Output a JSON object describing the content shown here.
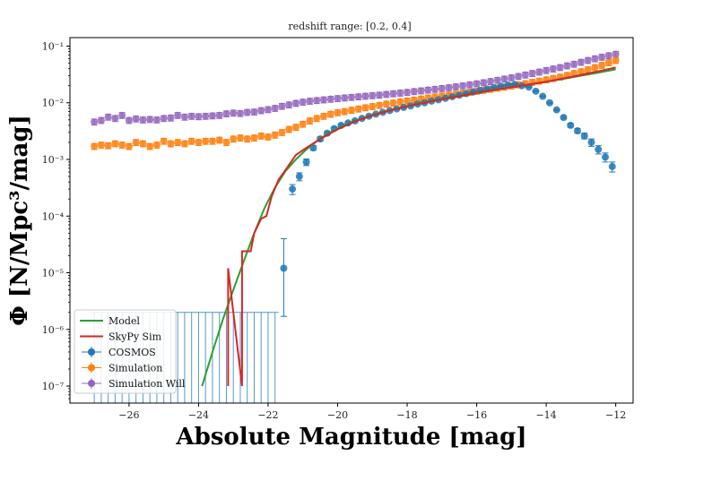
{
  "chart_data": {
    "type": "scatter",
    "title": "redshift range: [0.2, 0.4]",
    "xlabel": "Absolute Magnitude [mag]",
    "ylabel": "Φ [N/Mpc³/mag]",
    "xlim": [
      -27.7,
      -11.5
    ],
    "ylim_log10": [
      -7.3,
      -0.85
    ],
    "y_scale": "log",
    "x_ticks": [
      -26,
      -24,
      -22,
      -20,
      -18,
      -16,
      -14,
      -12
    ],
    "x_tick_labels": [
      "−26",
      "−24",
      "−22",
      "−20",
      "−18",
      "−16",
      "−14",
      "−12"
    ],
    "y_ticks_log10": [
      -7,
      -6,
      -5,
      -4,
      -3,
      -2,
      -1
    ],
    "y_tick_labels": [
      "10⁻⁷",
      "10⁻⁶",
      "10⁻⁵",
      "10⁻⁴",
      "10⁻³",
      "10⁻²",
      "10⁻¹"
    ],
    "legend_position": "lower-left",
    "colors": {
      "model": "#2ca02c",
      "skypy": "#d62728",
      "cosmos": "#1f77b4",
      "simulation": "#ff7f0e",
      "simulation_will": "#9467bd"
    },
    "series": [
      {
        "name": "Model",
        "kind": "line",
        "x": [
          -23.9,
          -23.6,
          -23.3,
          -23.0,
          -22.7,
          -22.4,
          -22.1,
          -21.8,
          -21.5,
          -21.2,
          -20.9,
          -20.6,
          -20.3,
          -20.0,
          -19.5,
          -19.0,
          -18.5,
          -18.0,
          -17.5,
          -17.0,
          -16.5,
          -16.0,
          -15.5,
          -15.0,
          -14.5,
          -14.0,
          -13.5,
          -13.0,
          -12.5,
          -12.0
        ],
        "y": [
          1e-07,
          4e-07,
          1.5e-06,
          5e-06,
          1.6e-05,
          5e-05,
          0.00014,
          0.00032,
          0.00062,
          0.001,
          0.0015,
          0.0021,
          0.0028,
          0.0035,
          0.0048,
          0.0061,
          0.0074,
          0.0088,
          0.0102,
          0.0116,
          0.0132,
          0.015,
          0.0168,
          0.0188,
          0.021,
          0.0235,
          0.0265,
          0.03,
          0.034,
          0.039
        ]
      },
      {
        "name": "SkyPy Sim",
        "kind": "line",
        "x": [
          -23.15,
          -23.15,
          -22.75,
          -22.75,
          -22.65,
          -22.5,
          -22.4,
          -22.2,
          -22.05,
          -21.9,
          -21.7,
          -21.5,
          -21.2,
          -20.9,
          -20.6,
          -20.3,
          -20.0,
          -19.5,
          -19.0,
          -18.5,
          -18.0,
          -17.5,
          -17.0,
          -16.5,
          -16.0,
          -15.5,
          -15.0,
          -14.5,
          -14.0,
          -13.5,
          -13.0,
          -12.5,
          -12.0
        ],
        "y": [
          1e-07,
          1.2e-05,
          1e-07,
          2.4e-05,
          2.4e-05,
          2.4e-05,
          5e-05,
          9e-05,
          0.0001,
          0.00022,
          0.00044,
          0.00065,
          0.0012,
          0.0016,
          0.0021,
          0.0027,
          0.0034,
          0.0047,
          0.006,
          0.0073,
          0.0087,
          0.01,
          0.0115,
          0.013,
          0.015,
          0.0168,
          0.0188,
          0.021,
          0.0235,
          0.027,
          0.031,
          0.036,
          0.042
        ]
      },
      {
        "name": "COSMOS",
        "kind": "errorbar",
        "x": [
          -21.55,
          -21.3,
          -21.1,
          -20.9,
          -20.7,
          -20.5,
          -20.3,
          -20.1,
          -19.9,
          -19.7,
          -19.5,
          -19.3,
          -19.1,
          -18.9,
          -18.7,
          -18.5,
          -18.3,
          -18.1,
          -17.9,
          -17.7,
          -17.5,
          -17.3,
          -17.1,
          -16.9,
          -16.7,
          -16.5,
          -16.3,
          -16.1,
          -15.9,
          -15.7,
          -15.5,
          -15.3,
          -15.1,
          -14.9,
          -14.7,
          -14.5,
          -14.3,
          -14.1,
          -13.9,
          -13.7,
          -13.5,
          -13.3,
          -13.1,
          -12.9,
          -12.7,
          -12.5,
          -12.3,
          -12.1
        ],
        "y": [
          1.2e-05,
          0.0003,
          0.0005,
          0.0009,
          0.0016,
          0.0023,
          0.0029,
          0.0035,
          0.004,
          0.0044,
          0.0048,
          0.0053,
          0.0058,
          0.0063,
          0.0068,
          0.0073,
          0.0078,
          0.0083,
          0.0088,
          0.0095,
          0.01,
          0.0107,
          0.0113,
          0.012,
          0.0128,
          0.0136,
          0.0145,
          0.0155,
          0.0165,
          0.0175,
          0.0185,
          0.0195,
          0.0205,
          0.021,
          0.02,
          0.019,
          0.016,
          0.013,
          0.01,
          0.0075,
          0.0055,
          0.004,
          0.0032,
          0.0026,
          0.002,
          0.0015,
          0.0011,
          0.00075
        ],
        "err_low": [
          1.03e-05,
          6e-05,
          8e-05,
          0.00012,
          0.00016,
          0.0002,
          0.0002,
          0.0002,
          0.0002,
          0.0002,
          0.0002,
          0.0002,
          0.0002,
          0.0002,
          0.0002,
          0.0002,
          0.0002,
          0.0002,
          0.0002,
          0.0002,
          0.0002,
          0.0002,
          0.0002,
          0.0002,
          0.0002,
          0.0002,
          0.0002,
          0.0002,
          0.0002,
          0.0002,
          0.0002,
          0.0002,
          0.0002,
          0.0002,
          0.0002,
          0.0002,
          0.0002,
          0.0002,
          0.0002,
          0.0002,
          0.0003,
          0.0003,
          0.0003,
          0.0003,
          0.0003,
          0.00025,
          0.0002,
          0.00015
        ],
        "err_high": [
          2.8e-05,
          6e-05,
          8e-05,
          0.00012,
          0.00016,
          0.0002,
          0.0002,
          0.0002,
          0.0002,
          0.0002,
          0.0002,
          0.0002,
          0.0002,
          0.0002,
          0.0002,
          0.0002,
          0.0002,
          0.0002,
          0.0002,
          0.0002,
          0.0002,
          0.0002,
          0.0002,
          0.0002,
          0.0002,
          0.0002,
          0.0002,
          0.0002,
          0.0002,
          0.0002,
          0.0002,
          0.0002,
          0.0002,
          0.0002,
          0.0002,
          0.0002,
          0.0002,
          0.0002,
          0.0002,
          0.0002,
          0.0003,
          0.0003,
          0.0003,
          0.0003,
          0.0003,
          0.00025,
          0.0002,
          0.00015
        ],
        "upper_limit_x": [
          -27.0,
          -26.8,
          -26.6,
          -26.4,
          -26.2,
          -26.0,
          -25.8,
          -25.6,
          -25.4,
          -25.2,
          -25.0,
          -24.8,
          -24.6,
          -24.4,
          -24.2,
          -24.0,
          -23.8,
          -23.6,
          -23.4,
          -23.2,
          -23.0,
          -22.8,
          -22.6,
          -22.4,
          -22.2,
          -22.0,
          -21.8
        ],
        "upper_limit_y": 2e-06
      },
      {
        "name": "Simulation",
        "kind": "errorbar",
        "x": [
          -27.0,
          -26.8,
          -26.6,
          -26.4,
          -26.2,
          -26.0,
          -25.8,
          -25.6,
          -25.4,
          -25.2,
          -25.0,
          -24.8,
          -24.6,
          -24.4,
          -24.2,
          -24.0,
          -23.8,
          -23.6,
          -23.4,
          -23.2,
          -23.0,
          -22.8,
          -22.6,
          -22.4,
          -22.2,
          -22.0,
          -21.8,
          -21.6,
          -21.4,
          -21.2,
          -21.0,
          -20.8,
          -20.6,
          -20.4,
          -20.2,
          -20.0,
          -19.8,
          -19.6,
          -19.4,
          -19.2,
          -19.0,
          -18.8,
          -18.6,
          -18.4,
          -18.2,
          -18.0,
          -17.8,
          -17.6,
          -17.4,
          -17.2,
          -17.0,
          -16.8,
          -16.6,
          -16.4,
          -16.2,
          -16.0,
          -15.8,
          -15.6,
          -15.4,
          -15.2,
          -15.0,
          -14.8,
          -14.6,
          -14.4,
          -14.2,
          -14.0,
          -13.8,
          -13.6,
          -13.4,
          -13.2,
          -13.0,
          -12.8,
          -12.6,
          -12.4,
          -12.2,
          -12.0
        ],
        "y": [
          0.0017,
          0.0018,
          0.00175,
          0.0019,
          0.0018,
          0.0017,
          0.002,
          0.0019,
          0.0017,
          0.0018,
          0.0021,
          0.0019,
          0.002,
          0.0019,
          0.0021,
          0.002,
          0.0021,
          0.0021,
          0.0022,
          0.002,
          0.0023,
          0.0024,
          0.0023,
          0.0024,
          0.0026,
          0.0025,
          0.0027,
          0.003,
          0.0034,
          0.0037,
          0.0042,
          0.0048,
          0.0053,
          0.0058,
          0.0063,
          0.0067,
          0.007,
          0.0074,
          0.0078,
          0.0082,
          0.0086,
          0.009,
          0.0095,
          0.0099,
          0.0104,
          0.0108,
          0.0112,
          0.0117,
          0.0122,
          0.0127,
          0.0132,
          0.0137,
          0.0142,
          0.0148,
          0.0154,
          0.016,
          0.0167,
          0.0174,
          0.0182,
          0.019,
          0.0199,
          0.0208,
          0.0218,
          0.023,
          0.0242,
          0.0255,
          0.027,
          0.0285,
          0.0305,
          0.033,
          0.0355,
          0.0385,
          0.042,
          0.046,
          0.051,
          0.056
        ]
      },
      {
        "name": "Simulation Will",
        "kind": "errorbar",
        "x": [
          -27.0,
          -26.8,
          -26.6,
          -26.4,
          -26.2,
          -26.0,
          -25.8,
          -25.6,
          -25.4,
          -25.2,
          -25.0,
          -24.8,
          -24.6,
          -24.4,
          -24.2,
          -24.0,
          -23.8,
          -23.6,
          -23.4,
          -23.2,
          -23.0,
          -22.8,
          -22.6,
          -22.4,
          -22.2,
          -22.0,
          -21.8,
          -21.6,
          -21.4,
          -21.2,
          -21.0,
          -20.8,
          -20.6,
          -20.4,
          -20.2,
          -20.0,
          -19.8,
          -19.6,
          -19.4,
          -19.2,
          -19.0,
          -18.8,
          -18.6,
          -18.4,
          -18.2,
          -18.0,
          -17.8,
          -17.6,
          -17.4,
          -17.2,
          -17.0,
          -16.8,
          -16.6,
          -16.4,
          -16.2,
          -16.0,
          -15.8,
          -15.6,
          -15.4,
          -15.2,
          -15.0,
          -14.8,
          -14.6,
          -14.4,
          -14.2,
          -14.0,
          -13.8,
          -13.6,
          -13.4,
          -13.2,
          -13.0,
          -12.8,
          -12.6,
          -12.4,
          -12.2,
          -12.0
        ],
        "y": [
          0.0046,
          0.0049,
          0.0056,
          0.0053,
          0.006,
          0.0049,
          0.0052,
          0.005,
          0.0051,
          0.005,
          0.0053,
          0.0054,
          0.006,
          0.0056,
          0.0058,
          0.0057,
          0.0058,
          0.0059,
          0.006,
          0.0064,
          0.0066,
          0.0065,
          0.0068,
          0.0069,
          0.0073,
          0.0076,
          0.008,
          0.0087,
          0.0092,
          0.0098,
          0.0103,
          0.0107,
          0.011,
          0.0113,
          0.0116,
          0.0119,
          0.0122,
          0.0125,
          0.0128,
          0.0131,
          0.0134,
          0.0137,
          0.0141,
          0.0145,
          0.0149,
          0.0153,
          0.0158,
          0.0163,
          0.0168,
          0.0173,
          0.0179,
          0.0185,
          0.0192,
          0.02,
          0.0208,
          0.0217,
          0.0227,
          0.0238,
          0.025,
          0.0263,
          0.0277,
          0.0293,
          0.031,
          0.033,
          0.035,
          0.0372,
          0.0396,
          0.042,
          0.045,
          0.048,
          0.052,
          0.056,
          0.06,
          0.064,
          0.068,
          0.072
        ]
      }
    ]
  }
}
